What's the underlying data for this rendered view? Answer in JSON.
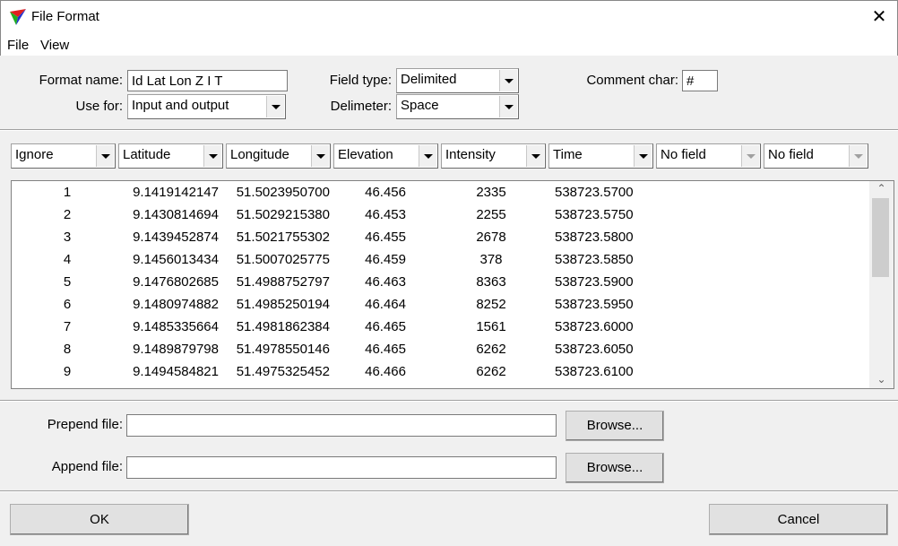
{
  "window": {
    "title": "File Format",
    "icon": "app-triangle-icon",
    "close": "✕"
  },
  "menu": [
    "File",
    "View"
  ],
  "form": {
    "format_name_label": "Format name:",
    "format_name_value": "Id Lat Lon Z I T",
    "use_for_label": "Use for:",
    "use_for_value": "Input and output",
    "field_type_label": "Field type:",
    "field_type_value": "Delimited",
    "delimeter_label": "Delimeter:",
    "delimeter_value": "Space",
    "comment_char_label": "Comment char:",
    "comment_char_value": "#"
  },
  "columns": [
    {
      "value": "Ignore",
      "enabled": true
    },
    {
      "value": "Latitude",
      "enabled": true
    },
    {
      "value": "Longitude",
      "enabled": true
    },
    {
      "value": "Elevation",
      "enabled": true
    },
    {
      "value": "Intensity",
      "enabled": true
    },
    {
      "value": "Time",
      "enabled": true
    },
    {
      "value": "No field",
      "enabled": false
    },
    {
      "value": "No field",
      "enabled": false
    }
  ],
  "rows": [
    [
      "1",
      "9.1419142147",
      "51.5023950700",
      "46.456",
      "2335",
      "538723.5700"
    ],
    [
      "2",
      "9.1430814694",
      "51.5029215380",
      "46.453",
      "2255",
      "538723.5750"
    ],
    [
      "3",
      "9.1439452874",
      "51.5021755302",
      "46.455",
      "2678",
      "538723.5800"
    ],
    [
      "4",
      "9.1456013434",
      "51.5007025775",
      "46.459",
      "378",
      "538723.5850"
    ],
    [
      "5",
      "9.1476802685",
      "51.4988752797",
      "46.463",
      "8363",
      "538723.5900"
    ],
    [
      "6",
      "9.1480974882",
      "51.4985250194",
      "46.464",
      "8252",
      "538723.5950"
    ],
    [
      "7",
      "9.1485335664",
      "51.4981862384",
      "46.465",
      "1561",
      "538723.6000"
    ],
    [
      "8",
      "9.1489879798",
      "51.4978550146",
      "46.465",
      "6262",
      "538723.6050"
    ],
    [
      "9",
      "9.1494584821",
      "51.4975325452",
      "46.466",
      "6262",
      "538723.6100"
    ]
  ],
  "files": {
    "prepend_label": "Prepend file:",
    "prepend_value": "",
    "append_label": "Append file:",
    "append_value": "",
    "browse": "Browse..."
  },
  "buttons": {
    "ok": "OK",
    "cancel": "Cancel"
  }
}
